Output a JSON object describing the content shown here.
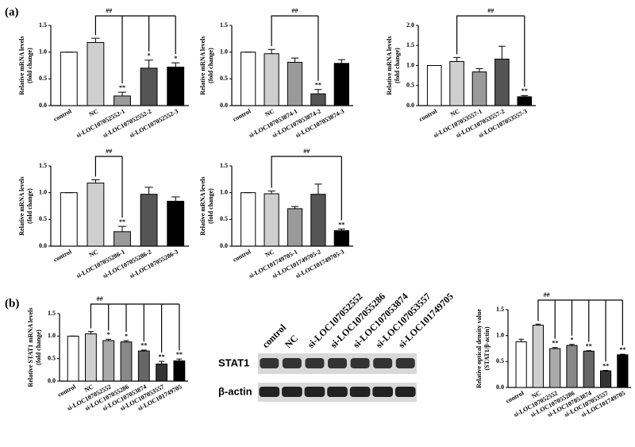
{
  "panels": [
    "(a)",
    "(b)"
  ],
  "chart_data": [
    {
      "type": "bar",
      "y_label": [
        "Relative mRNA levels",
        "(fold change)"
      ],
      "categories": [
        "control",
        "NC",
        "si-LOC107052552-1",
        "si-LOC107052552-2",
        "si-LOC107052552-3"
      ],
      "values": [
        1.0,
        1.18,
        0.18,
        0.7,
        0.72
      ],
      "errors": [
        0,
        0.08,
        0.07,
        0.15,
        0.08
      ],
      "significance": [
        null,
        null,
        "**",
        "*",
        "*"
      ],
      "comparison": "##",
      "colors": [
        "#ffffff",
        "#cfcfcf",
        "#9a9a9a",
        "#555555",
        "#000000"
      ],
      "ylim": [
        0,
        1.5
      ],
      "yticks": [
        {
          "value": 0,
          "label": "0.0"
        },
        0.5,
        {
          "value": 1,
          "label": "1.0"
        },
        1.5
      ]
    },
    {
      "type": "bar",
      "y_label": [
        "Relative mRNA levels",
        "(fold change)"
      ],
      "categories": [
        "control",
        "NC",
        "si-LOC107053874-1",
        "si-LOC107053874-2",
        "si-LOC107053874-3"
      ],
      "values": [
        1.0,
        0.97,
        0.81,
        0.22,
        0.79
      ],
      "errors": [
        0,
        0.08,
        0.08,
        0.08,
        0.07
      ],
      "significance": [
        null,
        null,
        null,
        "**",
        null
      ],
      "comparison": "##",
      "colors": [
        "#ffffff",
        "#cfcfcf",
        "#9a9a9a",
        "#555555",
        "#000000"
      ],
      "ylim": [
        0,
        1.5
      ],
      "yticks": [
        {
          "value": 0,
          "label": "0.0"
        },
        0.5,
        {
          "value": 1,
          "label": "1.0"
        },
        1.5
      ]
    },
    {
      "type": "bar",
      "y_label": [
        "Relative mRNA levels",
        "(fold change)"
      ],
      "categories": [
        "control",
        "NC",
        "si-LOC107053557-1",
        "si-LOC107053557-2",
        "si-LOC107053557-3"
      ],
      "values": [
        1.0,
        1.1,
        0.84,
        1.16,
        0.22
      ],
      "errors": [
        0,
        0.1,
        0.08,
        0.32,
        0.03
      ],
      "significance": [
        null,
        null,
        null,
        null,
        "**"
      ],
      "comparison": "##",
      "colors": [
        "#ffffff",
        "#cfcfcf",
        "#9a9a9a",
        "#555555",
        "#000000"
      ],
      "ylim": [
        0,
        2
      ],
      "yticks": [
        {
          "value": 0,
          "label": "0.0"
        },
        0.5,
        {
          "value": 1,
          "label": "1.0"
        },
        1.5,
        {
          "value": 2,
          "label": "2.0"
        }
      ]
    },
    {
      "type": "bar",
      "y_label": [
        "Relative mRNA levels",
        "(fold change)"
      ],
      "categories": [
        "control",
        "NC",
        "si-LOC107055286-1",
        "si-LOC107055286-2",
        "si-LOC107055286-3"
      ],
      "values": [
        1.0,
        1.18,
        0.27,
        0.97,
        0.84
      ],
      "errors": [
        0,
        0.06,
        0.1,
        0.13,
        0.08
      ],
      "significance": [
        null,
        null,
        "**",
        null,
        null
      ],
      "comparison": "##",
      "colors": [
        "#ffffff",
        "#cfcfcf",
        "#9a9a9a",
        "#555555",
        "#000000"
      ],
      "ylim": [
        0,
        1.5
      ],
      "yticks": [
        {
          "value": 0,
          "label": "0.0"
        },
        0.5,
        {
          "value": 1,
          "label": "1.0"
        },
        1.5
      ]
    },
    {
      "type": "bar",
      "y_label": [
        "Relative mRNA levels",
        "(fold change)"
      ],
      "categories": [
        "control",
        "NC",
        "si-LOC101749705-1",
        "si-LOC101749705-2",
        "si-LOC101749705-3"
      ],
      "values": [
        1.0,
        0.98,
        0.7,
        0.97,
        0.29
      ],
      "errors": [
        0,
        0.05,
        0.04,
        0.19,
        0.03
      ],
      "significance": [
        null,
        null,
        null,
        null,
        "**"
      ],
      "comparison": "##",
      "colors": [
        "#ffffff",
        "#cfcfcf",
        "#9a9a9a",
        "#555555",
        "#000000"
      ],
      "ylim": [
        0,
        1.5
      ],
      "yticks": [
        {
          "value": 0,
          "label": "0.0"
        },
        0.5,
        {
          "value": 1,
          "label": "1.0"
        },
        1.5
      ]
    },
    {
      "type": "bar",
      "y_label": [
        "Relative STAT1 mRNA levels",
        "(fold change)"
      ],
      "categories": [
        "control",
        "NC",
        "si-LOC107052552",
        "si-LOC107055286",
        "si-LOC107053874",
        "si-LOC107053557",
        "si-LOC101749705"
      ],
      "values": [
        1.0,
        1.05,
        0.9,
        0.87,
        0.67,
        0.38,
        0.45
      ],
      "errors": [
        0,
        0.05,
        0.03,
        0.03,
        0.02,
        0.06,
        0.04
      ],
      "significance": [
        null,
        null,
        "*",
        "*",
        "**",
        "**",
        "**"
      ],
      "comparison": "##",
      "colors": [
        "#ffffff",
        "#cfcfcf",
        "#aaaaaa",
        "#888888",
        "#666666",
        "#333333",
        "#000000"
      ],
      "ylim": [
        0,
        1.5
      ],
      "yticks": [
        {
          "value": 0,
          "label": "0.0"
        },
        0.5,
        {
          "value": 1,
          "label": "1.0"
        },
        1.5
      ]
    },
    {
      "type": "bar",
      "y_label": [
        "Relative optical density value",
        "(STAT1/β-actin)"
      ],
      "categories": [
        "control",
        "NC",
        "si-LOC107052552",
        "si-LOC107055286",
        "si-LOC107053874",
        "si-LOC107053557",
        "si-LOC101749705"
      ],
      "values": [
        0.88,
        1.2,
        0.75,
        0.81,
        0.7,
        0.32,
        0.63
      ],
      "errors": [
        0.05,
        0.02,
        0.02,
        0.02,
        0.01,
        0.01,
        0.01
      ],
      "significance": [
        null,
        null,
        "**",
        "*",
        "**",
        "**",
        "**"
      ],
      "comparison": "##",
      "colors": [
        "#ffffff",
        "#cfcfcf",
        "#aaaaaa",
        "#888888",
        "#666666",
        "#333333",
        "#000000"
      ],
      "ylim": [
        0,
        1.5
      ],
      "yticks": [
        {
          "value": 0,
          "label": "0.0"
        },
        0.5,
        {
          "value": 1,
          "label": "1.0"
        },
        1.5
      ]
    }
  ],
  "blot": {
    "lanes": [
      "control",
      "NC",
      "si-LOC107052552",
      "si-LOC107055286",
      "si-LOC107053874",
      "si-LOC107053557",
      "si-LOC101749705"
    ],
    "rows": [
      "STAT1",
      "β-actin"
    ]
  }
}
